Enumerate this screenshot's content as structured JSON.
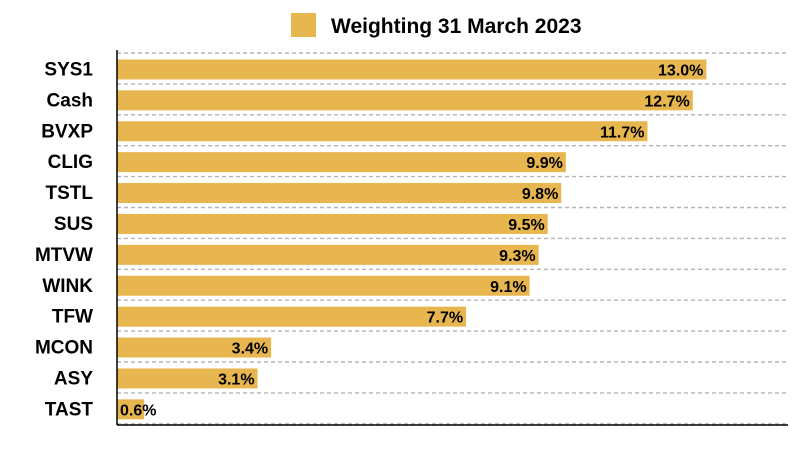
{
  "chart_data": {
    "type": "bar",
    "orientation": "horizontal",
    "legend": {
      "label": "Weighting 31 March 2023",
      "color": "#E8B64F",
      "placement": "top"
    },
    "series": [
      {
        "name": "Weighting 31 March 2023",
        "color": "#E8B64F",
        "values": [
          13.0,
          12.7,
          11.7,
          9.9,
          9.8,
          9.5,
          9.3,
          9.1,
          7.7,
          3.4,
          3.1,
          0.6
        ]
      }
    ],
    "categories": [
      "SYS1",
      "Cash",
      "BVXP",
      "CLIG",
      "TSTL",
      "SUS",
      "MTVW",
      "WINK",
      "TFW",
      "MCON",
      "ASY",
      "TAST"
    ],
    "value_labels": [
      "13.0%",
      "12.7%",
      "11.7%",
      "9.9%",
      "9.8%",
      "9.5%",
      "9.3%",
      "9.1%",
      "7.7%",
      "3.4%",
      "3.1%",
      "0.6%"
    ],
    "xlim": [
      0,
      14.8
    ],
    "grid": "horizontal dashed",
    "unit": "%"
  }
}
